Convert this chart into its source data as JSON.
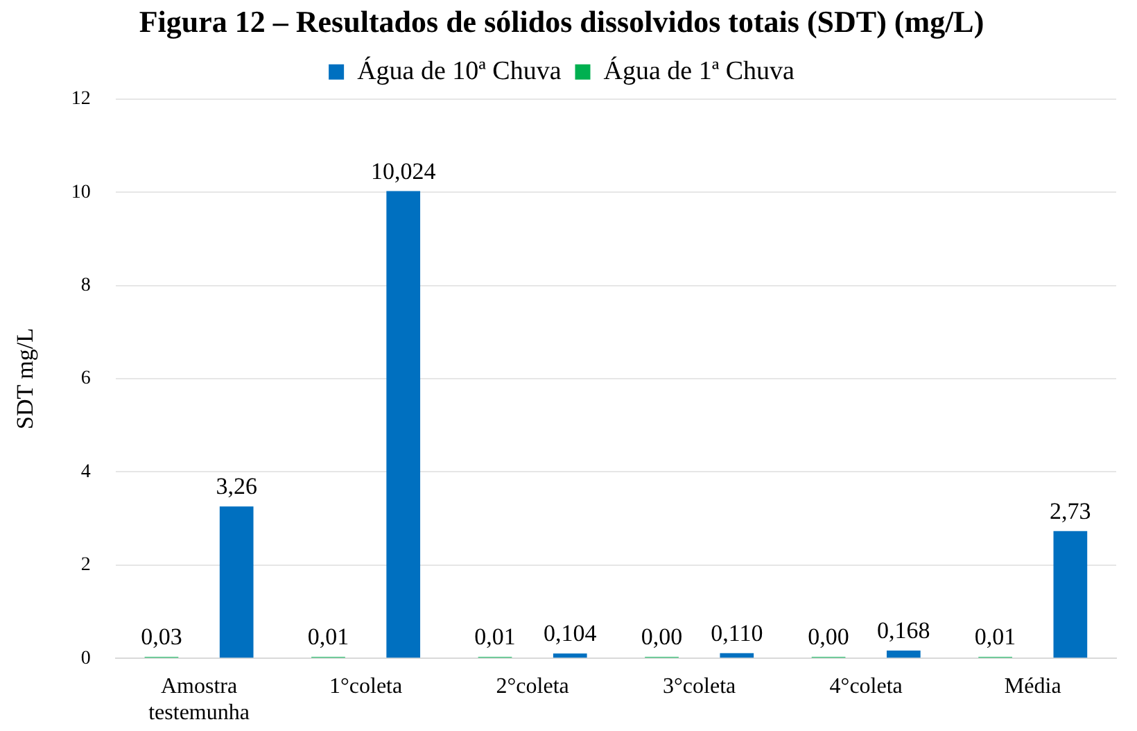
{
  "chart_data": {
    "type": "bar",
    "title": "Figura 12 – Resultados de sólidos dissolvidos totais (SDT) (mg/L)",
    "ylabel": "SDT mg/L",
    "categories": [
      "Amostra testemunha",
      "1°coleta",
      "2°coleta",
      "3°coleta",
      "4°coleta",
      "Média"
    ],
    "series": [
      {
        "name": "Água de 1ª Chuva",
        "color": "#00b050",
        "values": [
          0.03,
          0.01,
          0.01,
          0.0,
          0.0,
          0.01
        ],
        "value_labels": [
          "0,03",
          "0,01",
          "0,01",
          "0,00",
          "0,00",
          "0,01"
        ]
      },
      {
        "name": "Água de 10ª Chuva",
        "color": "#0070c0",
        "values": [
          3.26,
          10.024,
          0.104,
          0.11,
          0.168,
          2.73
        ],
        "value_labels": [
          "3,26",
          "10,024",
          "0,104",
          "0,110",
          "0,168",
          "2,73"
        ]
      }
    ],
    "ylim": [
      0,
      12
    ],
    "yticks": [
      0,
      2,
      4,
      6,
      8,
      10,
      12
    ],
    "grid": "y",
    "legend": "top"
  }
}
